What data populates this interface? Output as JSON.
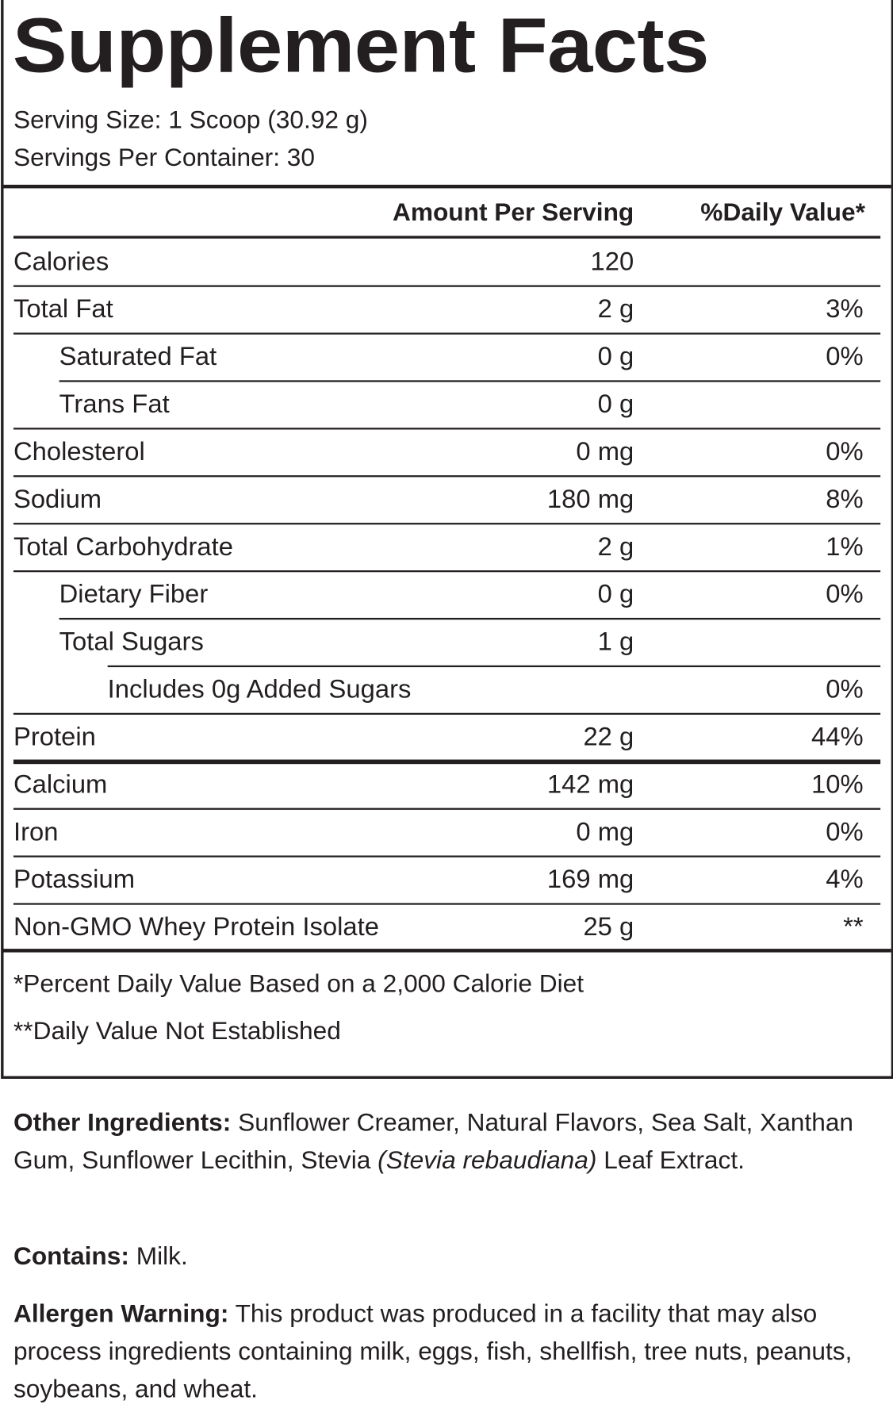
{
  "title": "Supplement Facts",
  "serving_size": "Serving Size: 1 Scoop (30.92 g)",
  "servings_per_container": "Servings Per Container: 30",
  "header": {
    "amount": "Amount Per Serving",
    "daily_value": "%Daily Value*"
  },
  "rows": [
    {
      "name": "Calories",
      "amount": "120"
    },
    {
      "name": "Total Fat",
      "amount": "2 g",
      "dv": "3%"
    },
    {
      "name": "Saturated Fat",
      "amount": "0 g",
      "dv": "0%"
    },
    {
      "name": "Trans Fat",
      "amount": "0 g"
    },
    {
      "name": "Cholesterol",
      "amount": "0 mg",
      "dv": "0%"
    },
    {
      "name": "Sodium",
      "amount": "180 mg",
      "dv": "8%"
    },
    {
      "name": "Total Carbohydrate",
      "amount": "2 g",
      "dv": "1%"
    },
    {
      "name": "Dietary Fiber",
      "amount": "0 g",
      "dv": "0%"
    },
    {
      "name": "Total Sugars",
      "amount": "1 g"
    },
    {
      "name": "Includes 0g Added Sugars",
      "dv": "0%"
    },
    {
      "name": "Protein",
      "amount": "22 g",
      "dv": "44%"
    },
    {
      "name": "Calcium",
      "amount": "142 mg",
      "dv": "10%"
    },
    {
      "name": "Iron",
      "amount": "0 mg",
      "dv": "0%"
    },
    {
      "name": "Potassium",
      "amount": "169 mg",
      "dv": "4%"
    },
    {
      "name": "Non-GMO Whey Protein Isolate",
      "amount": "25 g",
      "dv": "**"
    }
  ],
  "footnotes": [
    "*Percent Daily Value Based on a 2,000 Calorie Diet",
    "**Daily Value Not Established"
  ],
  "other_ingredients": {
    "label": "Other Ingredients:",
    "text": "Sunflower Creamer, Natural Flavors, Sea Salt, Xanthan Gum, Sunflower Lecithin, Stevia",
    "italic": "(Stevia rebaudiana)",
    "tail": "Leaf Extract."
  },
  "contains": {
    "label": "Contains:",
    "text": "Milk."
  },
  "allergen_warning": {
    "label": "Allergen Warning:",
    "text": "This product was produced in a facility that may also process ingredients containing milk, eggs, fish, shellfish, tree nuts, peanuts, soybeans, and wheat."
  }
}
